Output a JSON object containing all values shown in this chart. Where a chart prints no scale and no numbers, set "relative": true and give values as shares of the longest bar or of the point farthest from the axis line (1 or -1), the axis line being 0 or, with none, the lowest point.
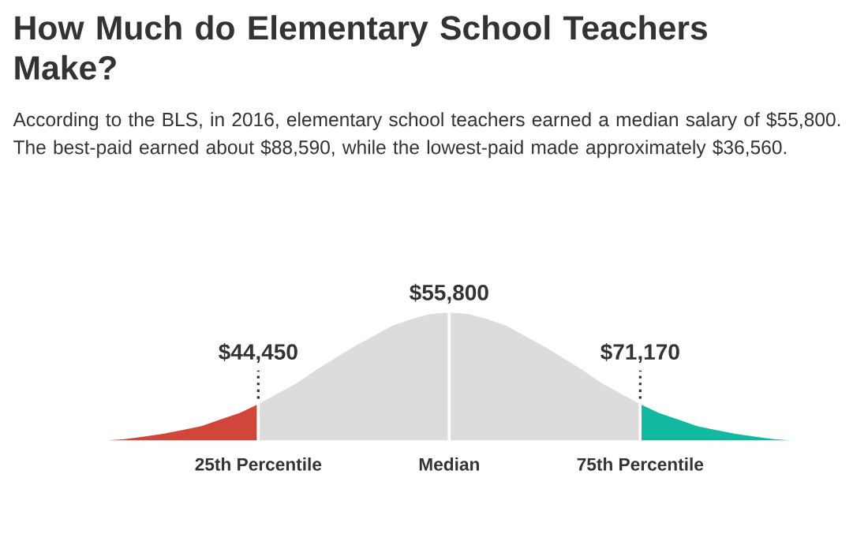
{
  "chart_data": {
    "type": "area",
    "relative": true,
    "title": "How Much do Elementary School Teachers Make?",
    "subtitle": "According to the BLS, in 2016, elementary school teachers earned a median salary of $55,800. The best-paid earned about $88,590, while the lowest-paid made approximately $36,560.",
    "categories": [
      null,
      null,
      null,
      null,
      null,
      null,
      null,
      null,
      null,
      null,
      "25th Percentile",
      null,
      null,
      null,
      null,
      null,
      null,
      null,
      null,
      null,
      "Median",
      null,
      null,
      null,
      null,
      null,
      null,
      null,
      null,
      null,
      "75th Percentile",
      null,
      null,
      null,
      null,
      null,
      null,
      null,
      null,
      null,
      null
    ],
    "series": [
      {
        "color": "#d1463b",
        "values": [
          0.01,
          0.01,
          0.02,
          0.03,
          0.05,
          0.07,
          0.1,
          0.13,
          0.18,
          0.23,
          0.3,
          null,
          null,
          null,
          null,
          null,
          null,
          null,
          null,
          null,
          null,
          null,
          null,
          null,
          null,
          null,
          null,
          null,
          null,
          null,
          null,
          null,
          null,
          null,
          null,
          null,
          null,
          null,
          null,
          null,
          null
        ]
      },
      {
        "color": "#dcdcdc",
        "values": [
          null,
          null,
          null,
          null,
          null,
          null,
          null,
          null,
          null,
          null,
          0.3,
          0.38,
          0.46,
          0.56,
          0.65,
          0.74,
          0.82,
          0.9,
          0.95,
          0.99,
          1,
          null,
          null,
          null,
          null,
          null,
          null,
          null,
          null,
          null,
          null,
          null,
          null,
          null,
          null,
          null,
          null,
          null,
          null,
          null,
          null
        ]
      },
      {
        "color": "#dcdcdc",
        "values": [
          null,
          null,
          null,
          null,
          null,
          null,
          null,
          null,
          null,
          null,
          null,
          null,
          null,
          null,
          null,
          null,
          null,
          null,
          null,
          null,
          1,
          0.99,
          0.95,
          0.9,
          0.82,
          0.74,
          0.65,
          0.56,
          0.46,
          0.38,
          0.3,
          null,
          null,
          null,
          null,
          null,
          null,
          null,
          null,
          null,
          null
        ]
      },
      {
        "color": "#12b8a0",
        "values": [
          null,
          null,
          null,
          null,
          null,
          null,
          null,
          null,
          null,
          null,
          null,
          null,
          null,
          null,
          null,
          null,
          null,
          null,
          null,
          null,
          null,
          null,
          null,
          null,
          null,
          null,
          null,
          null,
          null,
          null,
          0.3,
          0.23,
          0.18,
          0.13,
          0.1,
          0.07,
          0.05,
          0.03,
          0.02,
          0.01,
          0.01
        ]
      }
    ],
    "annotations": [
      {
        "text": "$44,450",
        "x": "25th Percentile",
        "y": 0.3
      },
      {
        "text": "$55,800",
        "x": "Median",
        "y": 1
      },
      {
        "text": "$71,170",
        "x": "75th Percentile",
        "y": 0.3
      }
    ]
  }
}
